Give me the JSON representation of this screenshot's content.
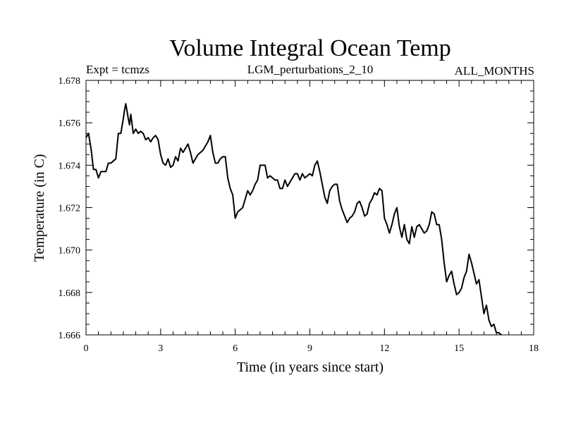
{
  "chart_data": {
    "type": "line",
    "title": "Volume Integral Ocean Temp",
    "subtitle_left": "Expt = tcmzs",
    "subtitle_center": "LGM_perturbations_2_10",
    "subtitle_right": "ALL_MONTHS",
    "xlabel": "Time (in years since start)",
    "ylabel": "Temperature (in C)",
    "xlim": [
      0,
      18
    ],
    "ylim": [
      1.666,
      1.678
    ],
    "xticks": [
      0,
      3,
      6,
      9,
      12,
      15,
      18
    ],
    "yticks": [
      1.666,
      1.668,
      1.67,
      1.672,
      1.674,
      1.676,
      1.678
    ],
    "xtick_labels": [
      "0",
      "3",
      "6",
      "9",
      "12",
      "15",
      "18"
    ],
    "ytick_labels": [
      "1.666",
      "1.668",
      "1.670",
      "1.672",
      "1.674",
      "1.676",
      "1.678"
    ],
    "grid": false,
    "series": [
      {
        "name": "Temperature",
        "color": "#000000",
        "x": [
          0.0,
          0.1,
          0.2,
          0.3,
          0.4,
          0.5,
          0.6,
          0.7,
          0.8,
          0.9,
          1.0,
          1.1,
          1.2,
          1.3,
          1.4,
          1.5,
          1.55,
          1.6,
          1.7,
          1.75,
          1.8,
          1.9,
          2.0,
          2.1,
          2.2,
          2.3,
          2.4,
          2.5,
          2.6,
          2.7,
          2.8,
          2.9,
          3.0,
          3.1,
          3.2,
          3.3,
          3.4,
          3.5,
          3.6,
          3.7,
          3.8,
          3.9,
          4.0,
          4.1,
          4.2,
          4.3,
          4.4,
          4.5,
          4.6,
          4.7,
          4.8,
          4.9,
          5.0,
          5.1,
          5.2,
          5.3,
          5.4,
          5.5,
          5.6,
          5.7,
          5.8,
          5.9,
          6.0,
          6.1,
          6.2,
          6.3,
          6.4,
          6.5,
          6.6,
          6.7,
          6.8,
          6.9,
          7.0,
          7.1,
          7.2,
          7.3,
          7.4,
          7.5,
          7.6,
          7.7,
          7.8,
          7.9,
          8.0,
          8.1,
          8.2,
          8.3,
          8.4,
          8.5,
          8.6,
          8.7,
          8.8,
          8.9,
          9.0,
          9.1,
          9.2,
          9.3,
          9.4,
          9.5,
          9.6,
          9.7,
          9.8,
          9.9,
          10.0,
          10.1,
          10.2,
          10.3,
          10.4,
          10.5,
          10.6,
          10.7,
          10.8,
          10.9,
          11.0,
          11.1,
          11.2,
          11.3,
          11.4,
          11.5,
          11.6,
          11.7,
          11.8,
          11.9,
          12.0,
          12.1,
          12.2,
          12.3,
          12.4,
          12.5,
          12.6,
          12.7,
          12.8,
          12.9,
          13.0,
          13.1,
          13.2,
          13.3,
          13.4,
          13.5,
          13.6,
          13.7,
          13.8,
          13.9,
          14.0,
          14.1,
          14.2,
          14.3,
          14.4,
          14.5,
          14.6,
          14.7,
          14.8,
          14.9,
          15.0,
          15.1,
          15.2,
          15.3,
          15.4,
          15.5,
          15.6,
          15.7,
          15.8,
          15.9,
          16.0,
          16.1,
          16.2,
          16.3,
          16.4,
          16.5,
          16.6,
          16.7
        ],
        "values": [
          1.6753,
          1.6755,
          1.6748,
          1.6738,
          1.6738,
          1.6734,
          1.6737,
          1.6737,
          1.6737,
          1.6741,
          1.6741,
          1.6742,
          1.6743,
          1.6755,
          1.6755,
          1.6762,
          1.6766,
          1.6769,
          1.6762,
          1.6759,
          1.6764,
          1.6755,
          1.6757,
          1.6755,
          1.6756,
          1.6755,
          1.6752,
          1.6753,
          1.6751,
          1.6753,
          1.6754,
          1.6752,
          1.6745,
          1.6741,
          1.674,
          1.6743,
          1.6739,
          1.674,
          1.6744,
          1.6742,
          1.6748,
          1.6746,
          1.6748,
          1.675,
          1.6746,
          1.6741,
          1.6743,
          1.6745,
          1.6746,
          1.6747,
          1.6749,
          1.6751,
          1.6754,
          1.6746,
          1.6741,
          1.6741,
          1.6743,
          1.6744,
          1.6744,
          1.6734,
          1.6729,
          1.6726,
          1.6715,
          1.6718,
          1.6719,
          1.672,
          1.6724,
          1.6728,
          1.6726,
          1.6728,
          1.6731,
          1.6733,
          1.674,
          1.674,
          1.674,
          1.6734,
          1.6735,
          1.6734,
          1.6733,
          1.6733,
          1.6729,
          1.6729,
          1.6733,
          1.673,
          1.6732,
          1.6734,
          1.6736,
          1.6736,
          1.6733,
          1.6736,
          1.6734,
          1.6735,
          1.6736,
          1.6735,
          1.674,
          1.6742,
          1.6737,
          1.6731,
          1.6725,
          1.6722,
          1.6728,
          1.673,
          1.6731,
          1.6731,
          1.6723,
          1.6719,
          1.6716,
          1.6713,
          1.6715,
          1.6716,
          1.6718,
          1.6722,
          1.6723,
          1.672,
          1.6716,
          1.6717,
          1.6722,
          1.6724,
          1.6727,
          1.6726,
          1.6729,
          1.6728,
          1.6715,
          1.6712,
          1.6708,
          1.6712,
          1.6717,
          1.672,
          1.6711,
          1.6706,
          1.6712,
          1.6705,
          1.6703,
          1.6711,
          1.6706,
          1.6711,
          1.6712,
          1.671,
          1.6708,
          1.6709,
          1.6712,
          1.6718,
          1.6717,
          1.6712,
          1.6712,
          1.6705,
          1.6694,
          1.6685,
          1.6688,
          1.669,
          1.6684,
          1.6679,
          1.668,
          1.6682,
          1.6687,
          1.669,
          1.6698,
          1.6694,
          1.6689,
          1.6684,
          1.6686,
          1.6678,
          1.667,
          1.6674,
          1.6667,
          1.6664,
          1.6665,
          1.6661,
          1.6661,
          1.666
        ]
      }
    ]
  }
}
